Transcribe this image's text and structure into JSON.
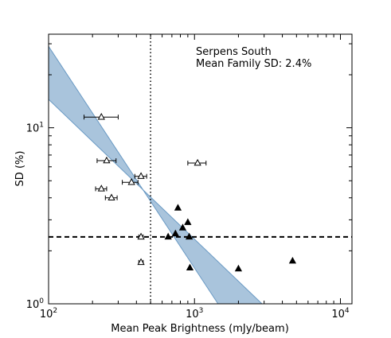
{
  "chart_data": {
    "type": "scatter",
    "xscale": "log",
    "yscale": "log",
    "xlim": [
      100,
      12000
    ],
    "ylim": [
      1,
      34
    ],
    "xlabel": "Mean Peak Brightness (mJy/beam)",
    "ylabel": "SD (%)",
    "x_ticks": [
      {
        "value": 100,
        "base": "10",
        "exp": "2"
      },
      {
        "value": 1000,
        "base": "10",
        "exp": "3"
      },
      {
        "value": 10000,
        "base": "10",
        "exp": "4"
      }
    ],
    "y_ticks": [
      {
        "value": 1,
        "base": "10",
        "exp": "0"
      },
      {
        "value": 10,
        "base": "10",
        "exp": "1"
      }
    ],
    "annotation": {
      "line1": "Serpens South",
      "line2": "Mean Family SD: 2.4%"
    },
    "band": {
      "color": "#a9c4dc",
      "edge_color": "#6a9ac4",
      "upper": [
        [
          100,
          29
        ],
        [
          1450,
          1.0
        ]
      ],
      "lower": [
        [
          100,
          14.5
        ],
        [
          2900,
          1.0
        ]
      ]
    },
    "hline": {
      "y": 2.4,
      "style": "dashed",
      "color": "#000000"
    },
    "vline": {
      "x": 500,
      "style": "dotted",
      "color": "#000000"
    },
    "series": [
      {
        "marker": "open-triangle",
        "points": [
          {
            "x": 230,
            "y": 11.5,
            "xerr": [
              175,
              300
            ]
          },
          {
            "x": 250,
            "y": 6.5,
            "xerr": [
              215,
              290
            ]
          },
          {
            "x": 370,
            "y": 4.9,
            "xerr": [
              320,
              410
            ]
          },
          {
            "x": 430,
            "y": 5.3,
            "xerr": [
              390,
              470
            ]
          },
          {
            "x": 1050,
            "y": 6.3,
            "xerr": [
              900,
              1200
            ]
          },
          {
            "x": 230,
            "y": 4.5,
            "xerr": [
              210,
              250
            ]
          },
          {
            "x": 270,
            "y": 4.0,
            "xerr": [
              245,
              295
            ]
          },
          {
            "x": 430,
            "y": 2.4,
            "xerr": [
              415,
              445
            ]
          },
          {
            "x": 430,
            "y": 1.72,
            "xerr": [
              415,
              445
            ]
          }
        ]
      },
      {
        "marker": "filled-triangle",
        "points": [
          {
            "x": 770,
            "y": 3.5
          },
          {
            "x": 830,
            "y": 2.7
          },
          {
            "x": 900,
            "y": 2.9
          },
          {
            "x": 740,
            "y": 2.5
          },
          {
            "x": 660,
            "y": 2.4
          },
          {
            "x": 920,
            "y": 2.4
          },
          {
            "x": 930,
            "y": 1.6
          },
          {
            "x": 2000,
            "y": 1.58
          },
          {
            "x": 4700,
            "y": 1.75
          }
        ]
      }
    ]
  }
}
